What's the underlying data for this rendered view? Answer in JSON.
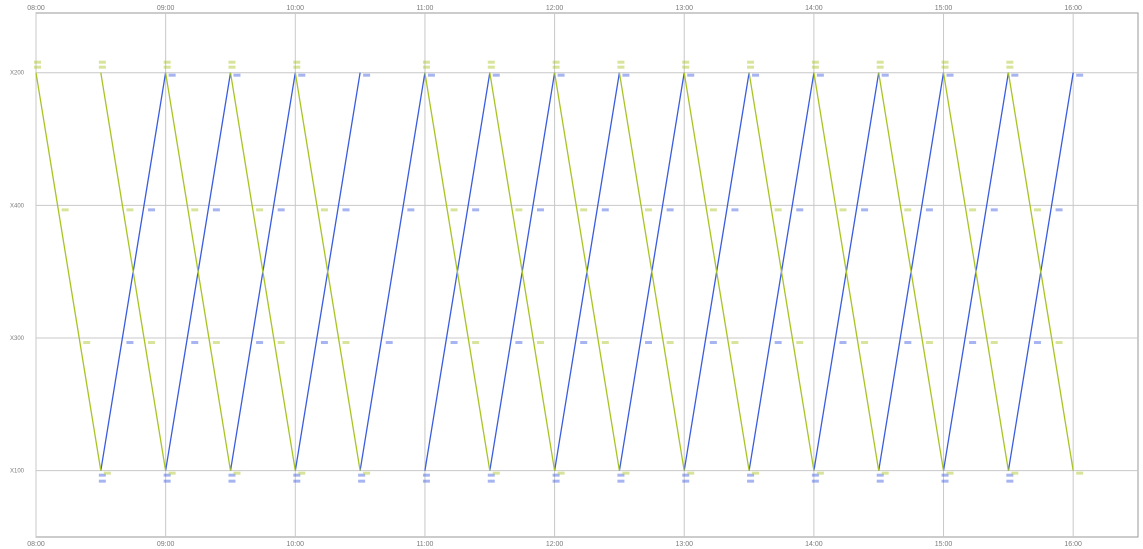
{
  "colors": {
    "up_train": "#3a5ce0",
    "down_train": "#a8c422",
    "grid": "#c8c8c8",
    "frame": "#9a9a9a",
    "tick_text": "#7a7a7a"
  },
  "chart_data": {
    "type": "line",
    "title": "",
    "xlabel": "",
    "ylabel": "",
    "grid": true,
    "legend": "none",
    "x_axis": {
      "unit": "hour",
      "range": [
        8.0,
        16.5
      ],
      "ticks": [
        8.0,
        9.0,
        10.0,
        11.0,
        12.0,
        13.0,
        14.0,
        15.0,
        16.0
      ],
      "tick_labels": [
        "08:00",
        "09:00",
        "10:00",
        "11:00",
        "12:00",
        "13:00",
        "14:00",
        "15:00",
        "16:00"
      ]
    },
    "y_axis": {
      "unit": "station",
      "range": [
        -0.45,
        3.5
      ],
      "stations": [
        0,
        1,
        2,
        3
      ],
      "station_labels": [
        "X200",
        "X400",
        "X300",
        "X100"
      ]
    },
    "series": [
      {
        "direction": "up",
        "trips": [
          [
            8.5,
            9.0
          ],
          [
            9.0,
            9.5
          ],
          [
            9.5,
            10.0
          ],
          [
            10.0,
            10.5
          ],
          [
            10.5,
            11.0
          ],
          [
            11.0,
            11.5
          ],
          [
            11.5,
            12.0
          ],
          [
            12.0,
            12.5
          ],
          [
            12.5,
            13.0
          ],
          [
            13.0,
            13.5
          ],
          [
            13.5,
            14.0
          ],
          [
            14.0,
            14.5
          ],
          [
            14.5,
            15.0
          ],
          [
            15.0,
            15.5
          ],
          [
            15.5,
            16.0
          ]
        ]
      },
      {
        "direction": "down",
        "trips": [
          [
            8.0,
            8.5
          ],
          [
            8.5,
            9.0
          ],
          [
            9.0,
            9.5
          ],
          [
            9.5,
            10.0
          ],
          [
            10.0,
            10.5
          ],
          [
            11.0,
            11.5
          ],
          [
            11.5,
            12.0
          ],
          [
            12.0,
            12.5
          ],
          [
            12.5,
            13.0
          ],
          [
            13.0,
            13.5
          ],
          [
            13.5,
            14.0
          ],
          [
            14.0,
            14.5
          ],
          [
            14.5,
            15.0
          ],
          [
            15.0,
            15.5
          ],
          [
            15.5,
            16.0
          ]
        ]
      }
    ]
  }
}
